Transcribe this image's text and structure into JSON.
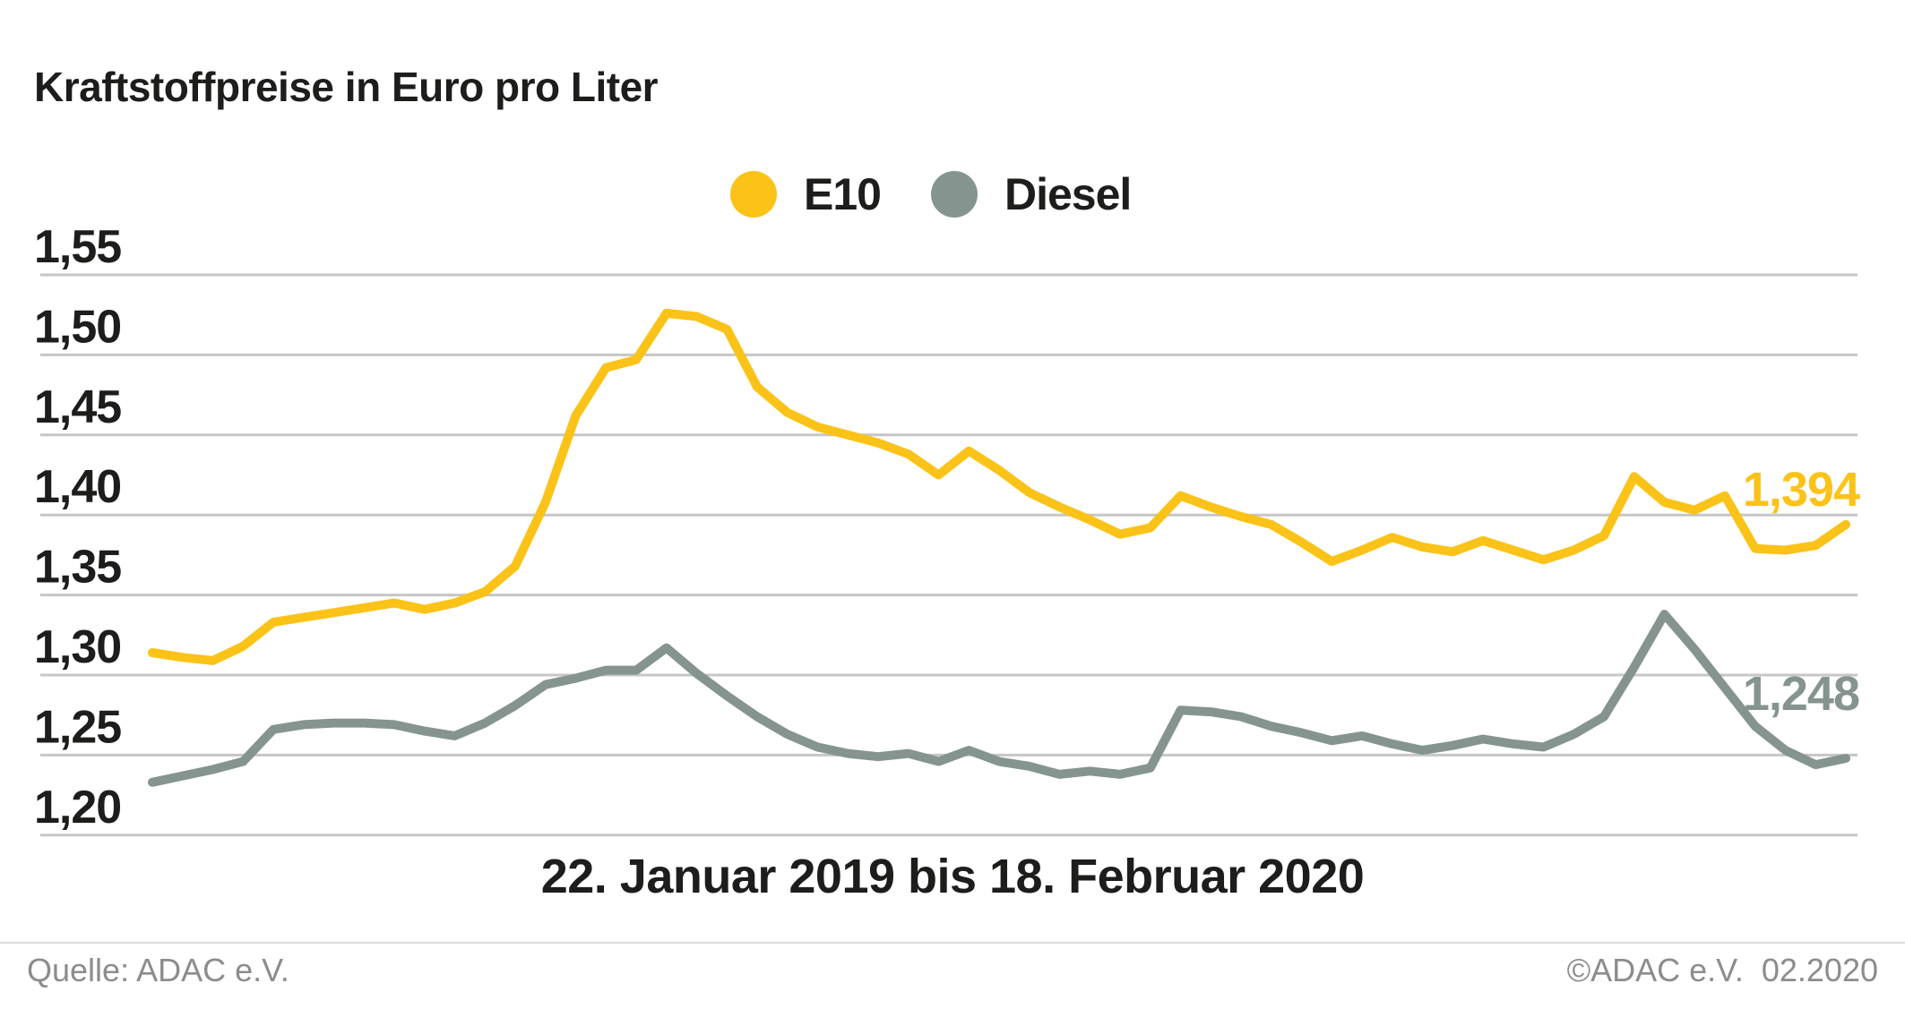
{
  "header": {
    "title": "Kraftstoffpreise in Euro pro Liter"
  },
  "legend": [
    {
      "label": "E10",
      "color": "#FBC218"
    },
    {
      "label": "Diesel",
      "color": "#85948F"
    }
  ],
  "footer": {
    "source": "Quelle: ADAC e.V.",
    "copyright": "©ADAC e.V.  02.2020"
  },
  "chart_data": {
    "type": "line",
    "title": "Kraftstoffpreise in Euro pro Liter",
    "xlabel": "22. Januar 2019 bis 18. Februar 2020",
    "ylabel": "Euro pro Liter",
    "grid": true,
    "grid_color": "#C6C6C6",
    "text_color": "#1d1d1b",
    "ylim": [
      1.2,
      1.55
    ],
    "y_step": 0.05,
    "yticks": [
      {
        "value": 1.55,
        "label": "1,55"
      },
      {
        "value": 1.5,
        "label": "1,50"
      },
      {
        "value": 1.45,
        "label": "1,45"
      },
      {
        "value": 1.4,
        "label": "1,40"
      },
      {
        "value": 1.35,
        "label": "1,35"
      },
      {
        "value": 1.3,
        "label": "1,30"
      },
      {
        "value": 1.25,
        "label": "1,25"
      },
      {
        "value": 1.2,
        "label": "1,20"
      }
    ],
    "x_interval": "weekly",
    "x_start": "22. Januar 2019",
    "x_end": "18. Februar 2020",
    "legend_position": "top-center",
    "series": [
      {
        "name": "E10",
        "color": "#FBC218",
        "end_label": "1,394",
        "end_value": 1.394,
        "values": [
          1.314,
          1.311,
          1.309,
          1.318,
          1.333,
          1.336,
          1.339,
          1.342,
          1.345,
          1.341,
          1.345,
          1.352,
          1.368,
          1.408,
          1.462,
          1.492,
          1.497,
          1.526,
          1.524,
          1.516,
          1.48,
          1.464,
          1.455,
          1.45,
          1.445,
          1.438,
          1.425,
          1.44,
          1.428,
          1.414,
          1.405,
          1.397,
          1.388,
          1.392,
          1.412,
          1.405,
          1.399,
          1.394,
          1.383,
          1.371,
          1.378,
          1.386,
          1.38,
          1.377,
          1.384,
          1.378,
          1.372,
          1.378,
          1.387,
          1.424,
          1.408,
          1.403,
          1.412,
          1.379,
          1.378,
          1.381,
          1.394
        ]
      },
      {
        "name": "Diesel",
        "color": "#85948F",
        "end_label": "1,248",
        "end_value": 1.248,
        "values": [
          1.233,
          1.237,
          1.241,
          1.246,
          1.266,
          1.269,
          1.27,
          1.27,
          1.269,
          1.265,
          1.262,
          1.27,
          1.281,
          1.294,
          1.298,
          1.303,
          1.303,
          1.317,
          1.301,
          1.287,
          1.274,
          1.263,
          1.255,
          1.251,
          1.249,
          1.251,
          1.246,
          1.253,
          1.246,
          1.243,
          1.238,
          1.24,
          1.238,
          1.242,
          1.278,
          1.277,
          1.274,
          1.268,
          1.264,
          1.259,
          1.262,
          1.257,
          1.253,
          1.256,
          1.26,
          1.257,
          1.255,
          1.263,
          1.274,
          1.305,
          1.338,
          1.316,
          1.292,
          1.268,
          1.253,
          1.244,
          1.248
        ]
      }
    ]
  }
}
